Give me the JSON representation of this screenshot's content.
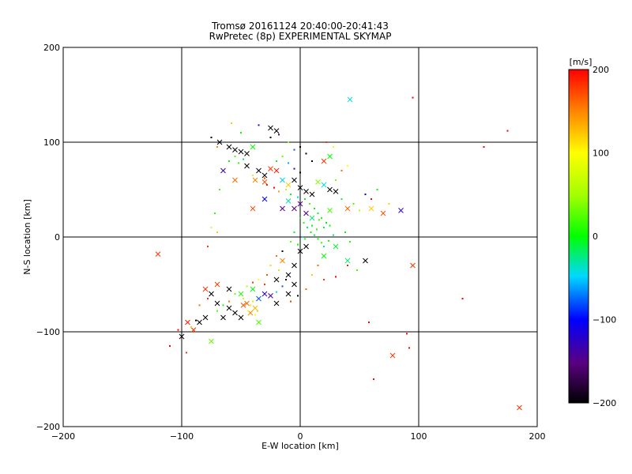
{
  "chart_data": {
    "type": "scatter",
    "title": "Tromsø 20161124 20:40:00-20:41:43",
    "subtitle": "RwPretec (8p) EXPERIMENTAL SKYMAP",
    "xlabel": "E-W location [km]",
    "ylabel": "N-S location [km]",
    "xlim": [
      -200,
      200
    ],
    "ylim": [
      -200,
      200
    ],
    "xticks": [
      -200,
      -100,
      0,
      100,
      200
    ],
    "yticks": [
      -200,
      -100,
      0,
      100,
      200
    ],
    "grid": true,
    "colorbar": {
      "label": "[m/s]",
      "min": -200,
      "max": 200,
      "ticks": [
        -200,
        -100,
        0,
        100,
        200
      ]
    },
    "series": [
      {
        "marker": "x",
        "points": [
          [
            -68,
            100,
            -200
          ],
          [
            -60,
            95,
            -200
          ],
          [
            -55,
            92,
            -200
          ],
          [
            -50,
            90,
            -200
          ],
          [
            -45,
            88,
            -200
          ],
          [
            -40,
            95,
            0
          ],
          [
            -35,
            70,
            -200
          ],
          [
            -30,
            65,
            -200
          ],
          [
            -25,
            115,
            -200
          ],
          [
            -20,
            112,
            -200
          ],
          [
            -65,
            70,
            -130
          ],
          [
            -55,
            60,
            160
          ],
          [
            -45,
            75,
            -200
          ],
          [
            -38,
            60,
            150
          ],
          [
            -30,
            58,
            170
          ],
          [
            -25,
            72,
            180
          ],
          [
            -20,
            70,
            190
          ],
          [
            -15,
            60,
            -50
          ],
          [
            -10,
            55,
            120
          ],
          [
            -5,
            60,
            -200
          ],
          [
            0,
            52,
            -200
          ],
          [
            5,
            48,
            -200
          ],
          [
            10,
            45,
            -200
          ],
          [
            15,
            58,
            40
          ],
          [
            20,
            55,
            -40
          ],
          [
            25,
            50,
            -200
          ],
          [
            30,
            48,
            -200
          ],
          [
            -5,
            30,
            -150
          ],
          [
            0,
            35,
            -150
          ],
          [
            5,
            25,
            -150
          ],
          [
            10,
            20,
            -20
          ],
          [
            -10,
            38,
            -30
          ],
          [
            25,
            28,
            20
          ],
          [
            40,
            30,
            160
          ],
          [
            60,
            30,
            120
          ],
          [
            70,
            25,
            170
          ],
          [
            85,
            28,
            -130
          ],
          [
            20,
            80,
            180
          ],
          [
            25,
            85,
            0
          ],
          [
            42,
            145,
            -40
          ],
          [
            -60,
            -75,
            -200
          ],
          [
            -55,
            -80,
            -200
          ],
          [
            -50,
            -85,
            -200
          ],
          [
            -65,
            -85,
            -200
          ],
          [
            -70,
            -70,
            -200
          ],
          [
            -80,
            -85,
            -200
          ],
          [
            -85,
            -90,
            -200
          ],
          [
            -75,
            -60,
            -200
          ],
          [
            -60,
            -55,
            -200
          ],
          [
            -50,
            -60,
            10
          ],
          [
            -40,
            -55,
            0
          ],
          [
            -35,
            -65,
            -80
          ],
          [
            -30,
            -60,
            -120
          ],
          [
            -25,
            -62,
            -130
          ],
          [
            -20,
            -70,
            -200
          ],
          [
            -45,
            -70,
            160
          ],
          [
            -42,
            -80,
            150
          ],
          [
            -38,
            -75,
            130
          ],
          [
            -48,
            -72,
            170
          ],
          [
            -35,
            -90,
            20
          ],
          [
            -70,
            -50,
            180
          ],
          [
            -80,
            -55,
            180
          ],
          [
            -90,
            -98,
            180
          ],
          [
            -95,
            -90,
            190
          ],
          [
            -100,
            -105,
            -200
          ],
          [
            -75,
            -110,
            30
          ],
          [
            -20,
            -45,
            -200
          ],
          [
            -10,
            -40,
            -200
          ],
          [
            -5,
            -30,
            -200
          ],
          [
            -10,
            -60,
            -200
          ],
          [
            -5,
            -50,
            -200
          ],
          [
            0,
            -15,
            -200
          ],
          [
            5,
            -10,
            -200
          ],
          [
            -15,
            -25,
            150
          ],
          [
            20,
            -20,
            0
          ],
          [
            30,
            -10,
            -10
          ],
          [
            40,
            -25,
            -20
          ],
          [
            55,
            -25,
            -200
          ],
          [
            -120,
            -18,
            180
          ],
          [
            78,
            -125,
            180
          ],
          [
            95,
            -30,
            180
          ],
          [
            185,
            -180,
            180
          ],
          [
            -15,
            30,
            -150
          ],
          [
            -30,
            40,
            -100
          ],
          [
            -40,
            30,
            170
          ]
        ]
      },
      {
        "marker": "dot",
        "points": [
          [
            -75,
            105,
            -200
          ],
          [
            -70,
            95,
            150
          ],
          [
            -58,
            120,
            120
          ],
          [
            -50,
            110,
            0
          ],
          [
            -35,
            118,
            -120
          ],
          [
            -25,
            105,
            -200
          ],
          [
            -18,
            108,
            -160
          ],
          [
            -10,
            100,
            40
          ],
          [
            -5,
            92,
            -80
          ],
          [
            0,
            95,
            -200
          ],
          [
            5,
            88,
            -200
          ],
          [
            10,
            80,
            -200
          ],
          [
            -60,
            80,
            0
          ],
          [
            -55,
            85,
            20
          ],
          [
            -52,
            78,
            10
          ],
          [
            -48,
            82,
            -20
          ],
          [
            -40,
            65,
            80
          ],
          [
            -30,
            62,
            170
          ],
          [
            -28,
            55,
            190
          ],
          [
            -22,
            52,
            200
          ],
          [
            -18,
            48,
            140
          ],
          [
            -12,
            50,
            60
          ],
          [
            -8,
            45,
            0
          ],
          [
            -2,
            42,
            -50
          ],
          [
            4,
            40,
            0
          ],
          [
            8,
            35,
            20
          ],
          [
            12,
            30,
            0
          ],
          [
            15,
            25,
            -10
          ],
          [
            18,
            20,
            10
          ],
          [
            22,
            15,
            0
          ],
          [
            0,
            20,
            0
          ],
          [
            3,
            15,
            10
          ],
          [
            6,
            10,
            -20
          ],
          [
            9,
            5,
            0
          ],
          [
            12,
            2,
            -10
          ],
          [
            15,
            -2,
            0
          ],
          [
            18,
            -6,
            20
          ],
          [
            20,
            -10,
            -30
          ],
          [
            24,
            -4,
            0
          ],
          [
            28,
            2,
            -20
          ],
          [
            4,
            -2,
            10
          ],
          [
            -2,
            -8,
            0
          ],
          [
            -5,
            5,
            -10
          ],
          [
            -8,
            -5,
            30
          ],
          [
            2,
            0,
            -50
          ],
          [
            10,
            12,
            0
          ],
          [
            14,
            8,
            10
          ],
          [
            16,
            18,
            20
          ],
          [
            20,
            10,
            -10
          ],
          [
            25,
            12,
            0
          ],
          [
            -15,
            -15,
            -200
          ],
          [
            -20,
            -20,
            160
          ],
          [
            -25,
            -30,
            120
          ],
          [
            -28,
            -40,
            170
          ],
          [
            -18,
            -35,
            60
          ],
          [
            -12,
            -45,
            -200
          ],
          [
            -30,
            -50,
            180
          ],
          [
            -35,
            -45,
            100
          ],
          [
            -40,
            -48,
            180
          ],
          [
            -45,
            -52,
            60
          ],
          [
            -55,
            -60,
            30
          ],
          [
            -60,
            -68,
            160
          ],
          [
            -65,
            -72,
            0
          ],
          [
            -70,
            -78,
            20
          ],
          [
            -78,
            -65,
            180
          ],
          [
            -85,
            -72,
            160
          ],
          [
            -88,
            -88,
            -200
          ],
          [
            -92,
            -95,
            120
          ],
          [
            -96,
            -122,
            180
          ],
          [
            -48,
            -65,
            80
          ],
          [
            -42,
            -72,
            110
          ],
          [
            -38,
            -82,
            100
          ],
          [
            -44,
            -78,
            90
          ],
          [
            -40,
            -68,
            70
          ],
          [
            -36,
            -78,
            120
          ],
          [
            -20,
            -58,
            -40
          ],
          [
            -15,
            -52,
            -80
          ],
          [
            -8,
            -68,
            180
          ],
          [
            -2,
            -62,
            -200
          ],
          [
            5,
            -55,
            160
          ],
          [
            10,
            -40,
            120
          ],
          [
            15,
            -30,
            160
          ],
          [
            20,
            -45,
            180
          ],
          [
            30,
            -42,
            200
          ],
          [
            40,
            -30,
            190
          ],
          [
            48,
            -35,
            20
          ],
          [
            60,
            40,
            200
          ],
          [
            65,
            50,
            0
          ],
          [
            55,
            45,
            -100
          ],
          [
            75,
            35,
            120
          ],
          [
            30,
            60,
            40
          ],
          [
            35,
            70,
            160
          ],
          [
            40,
            75,
            100
          ],
          [
            28,
            95,
            90
          ],
          [
            22,
            100,
            180
          ],
          [
            -68,
            50,
            20
          ],
          [
            -72,
            25,
            10
          ],
          [
            -75,
            10,
            80
          ],
          [
            -70,
            5,
            120
          ],
          [
            -78,
            -10,
            180
          ],
          [
            95,
            147,
            200
          ],
          [
            155,
            95,
            200
          ],
          [
            175,
            112,
            200
          ],
          [
            137,
            -65,
            200
          ],
          [
            62,
            -150,
            200
          ],
          [
            58,
            -90,
            200
          ],
          [
            90,
            -102,
            200
          ],
          [
            92,
            -117,
            200
          ],
          [
            -103,
            -98,
            200
          ],
          [
            -110,
            -115,
            200
          ],
          [
            35,
            40,
            -10
          ],
          [
            45,
            35,
            20
          ],
          [
            50,
            28,
            60
          ],
          [
            38,
            5,
            0
          ],
          [
            42,
            -5,
            10
          ],
          [
            -20,
            80,
            0
          ],
          [
            -15,
            85,
            30
          ],
          [
            -10,
            78,
            -60
          ],
          [
            -5,
            72,
            -120
          ],
          [
            0,
            68,
            -200
          ]
        ]
      }
    ]
  }
}
